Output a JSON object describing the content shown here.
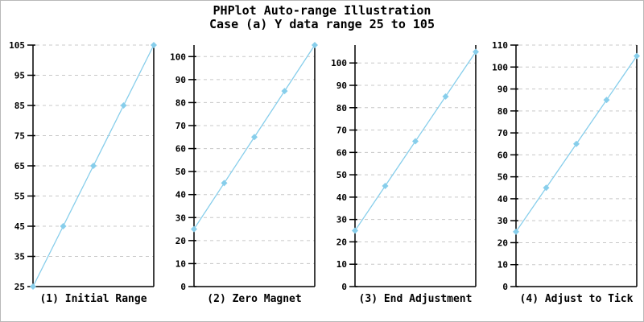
{
  "title": "PHPlot Auto-range Illustration",
  "subtitle": "Case (a) Y data range 25 to 105",
  "colors": {
    "line": "#87CEEB",
    "marker": "#87CEEB",
    "grid": "#c8c8c8",
    "axis": "#000000",
    "text": "#000000",
    "canvas_border": "#b8b8b8",
    "background": "#ffffff"
  },
  "chart_data": [
    {
      "type": "line",
      "title": "(1) Initial Range",
      "x": [
        1,
        2,
        3,
        4,
        5
      ],
      "values": [
        25,
        45,
        65,
        85,
        105
      ],
      "ylim": [
        25,
        105
      ],
      "yticks": [
        25,
        35,
        45,
        55,
        65,
        75,
        85,
        95,
        105
      ],
      "grid": true,
      "marker": "diamond",
      "legend_position": "none",
      "xlabel": "(1) Initial Range",
      "ylabel": ""
    },
    {
      "type": "line",
      "title": "(2) Zero Magnet",
      "x": [
        1,
        2,
        3,
        4,
        5
      ],
      "values": [
        25,
        45,
        65,
        85,
        105
      ],
      "ylim": [
        0,
        105
      ],
      "yticks": [
        0,
        10,
        20,
        30,
        40,
        50,
        60,
        70,
        80,
        90,
        100
      ],
      "grid": true,
      "marker": "diamond",
      "legend_position": "none",
      "xlabel": "(2) Zero Magnet",
      "ylabel": ""
    },
    {
      "type": "line",
      "title": "(3) End Adjustment",
      "x": [
        1,
        2,
        3,
        4,
        5
      ],
      "values": [
        25,
        45,
        65,
        85,
        105
      ],
      "ylim": [
        0,
        108
      ],
      "yticks": [
        0,
        10,
        20,
        30,
        40,
        50,
        60,
        70,
        80,
        90,
        100
      ],
      "grid": true,
      "marker": "diamond",
      "legend_position": "none",
      "xlabel": "(3) End Adjustment",
      "ylabel": ""
    },
    {
      "type": "line",
      "title": "(4) Adjust to Tick",
      "x": [
        1,
        2,
        3,
        4,
        5
      ],
      "values": [
        25,
        45,
        65,
        85,
        105
      ],
      "ylim": [
        0,
        110
      ],
      "yticks": [
        0,
        10,
        20,
        30,
        40,
        50,
        60,
        70,
        80,
        90,
        100,
        110
      ],
      "grid": true,
      "marker": "diamond",
      "legend_position": "none",
      "xlabel": "(4) Adjust to Tick",
      "ylabel": ""
    }
  ]
}
